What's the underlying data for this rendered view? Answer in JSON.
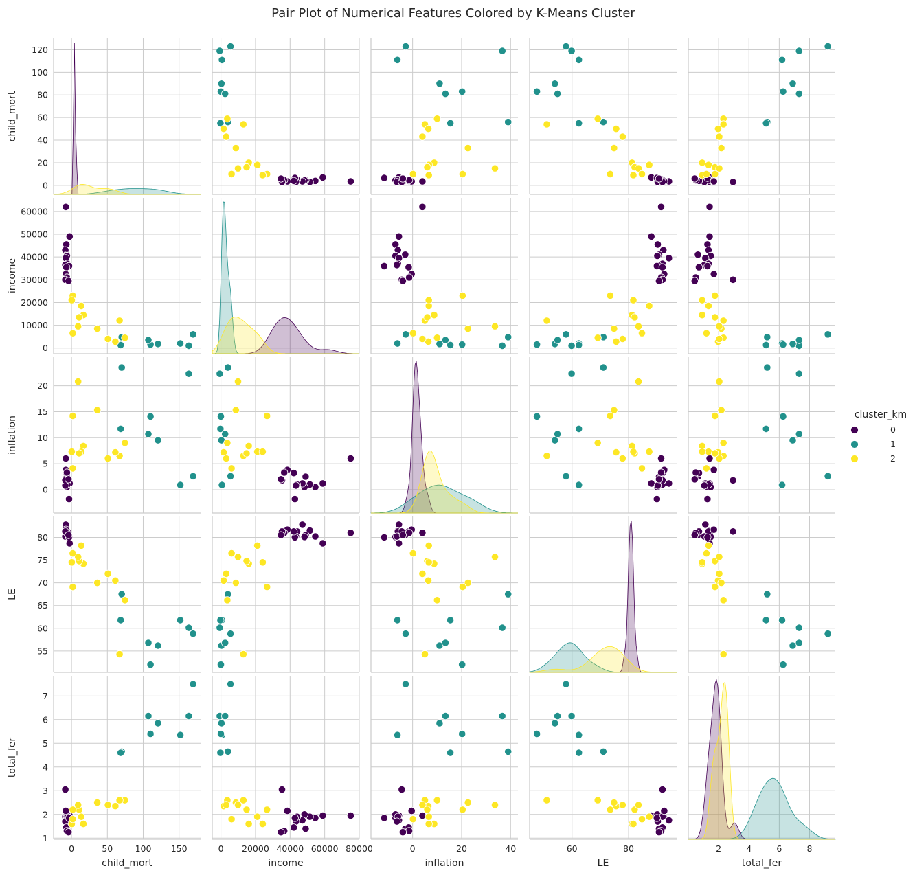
{
  "chart_data": {
    "type": "scatter",
    "title": "Pair Plot of Numerical Features Colored by K-Means Cluster",
    "variables": [
      "child_mort",
      "income",
      "inflation",
      "LE",
      "total_fer"
    ],
    "ranges": {
      "child_mort": [
        -8,
        130
      ],
      "income": [
        -2500,
        66000
      ],
      "inflation": [
        -4.5,
        25.5
      ],
      "LE": [
        50.3,
        84.6
      ],
      "total_fer": [
        0.95,
        7.85
      ]
    },
    "diag_xranges": {
      "child_mort": [
        -25,
        180
      ],
      "income": [
        -5000,
        80000
      ],
      "inflation": [
        -17,
        43
      ],
      "LE": [
        45,
        97
      ],
      "total_fer": [
        0,
        9.7
      ]
    },
    "ticks": {
      "child_mort": [
        0,
        20,
        40,
        60,
        80,
        100,
        120
      ],
      "income": [
        0,
        10000,
        20000,
        30000,
        40000,
        50000,
        60000
      ],
      "inflation": [
        0,
        5,
        10,
        15,
        20
      ],
      "LE": [
        55,
        60,
        65,
        70,
        75,
        80
      ],
      "total_fer": [
        1,
        2,
        3,
        4,
        5,
        6,
        7
      ]
    },
    "bottom_ticks": {
      "child_mort": [
        0,
        50,
        100,
        150
      ],
      "income": [
        0,
        20000,
        40000,
        60000,
        80000
      ],
      "inflation": [
        0,
        20,
        40
      ],
      "LE": [
        60,
        80
      ],
      "total_fer": [
        2,
        4,
        6,
        8
      ]
    },
    "grid": true,
    "legend": {
      "title": "cluster_km",
      "position": "right",
      "entries": [
        {
          "label": "0",
          "color": "#440154"
        },
        {
          "label": "1",
          "color": "#21918c"
        },
        {
          "label": "2",
          "color": "#fde725"
        }
      ]
    },
    "series": [
      {
        "cluster": "0",
        "color": "#440154",
        "points": [
          {
            "child_mort": 3.5,
            "income": 62000,
            "inflation": 6.0,
            "LE": 81.0,
            "total_fer": 1.95
          },
          {
            "child_mort": 7.0,
            "income": 49000,
            "inflation": 1.2,
            "LE": 78.7,
            "total_fer": 1.95
          },
          {
            "child_mort": 4.0,
            "income": 45500,
            "inflation": 0.5,
            "LE": 80.2,
            "total_fer": 1.85
          },
          {
            "child_mort": 3.0,
            "income": 43000,
            "inflation": 1.0,
            "LE": 81.5,
            "total_fer": 1.9
          },
          {
            "child_mort": 4.5,
            "income": 41000,
            "inflation": 2.5,
            "LE": 80.5,
            "total_fer": 1.4
          },
          {
            "child_mort": 4.5,
            "income": 40500,
            "inflation": 0.5,
            "LE": 80.1,
            "total_fer": 2.0
          },
          {
            "child_mort": 3.5,
            "income": 39500,
            "inflation": 1.2,
            "LE": 82.8,
            "total_fer": 1.75
          },
          {
            "child_mort": 5.0,
            "income": 37000,
            "inflation": 1.0,
            "LE": 81.3,
            "total_fer": 1.9
          },
          {
            "child_mort": 3.0,
            "income": 36500,
            "inflation": 0.8,
            "LE": 80.2,
            "total_fer": 1.7
          },
          {
            "child_mort": 6.5,
            "income": 36000,
            "inflation": -1.8,
            "LE": 80.0,
            "total_fer": 1.85
          },
          {
            "child_mort": 4.0,
            "income": 35500,
            "inflation": 3.2,
            "LE": 81.3,
            "total_fer": 1.45
          },
          {
            "child_mort": 3.5,
            "income": 32500,
            "inflation": 3.8,
            "LE": 81.7,
            "total_fer": 2.15
          },
          {
            "child_mort": 4.5,
            "income": 31000,
            "inflation": 3.3,
            "LE": 81.0,
            "total_fer": 1.3
          },
          {
            "child_mort": 3.0,
            "income": 30000,
            "inflation": 1.8,
            "LE": 81.3,
            "total_fer": 3.05
          },
          {
            "child_mort": 6.0,
            "income": 29500,
            "inflation": 2.0,
            "LE": 80.5,
            "total_fer": 1.25
          }
        ]
      },
      {
        "cluster": "1",
        "color": "#21918c",
        "points": [
          {
            "child_mort": 123,
            "income": 6000,
            "inflation": 2.6,
            "LE": 58.8,
            "total_fer": 7.5
          },
          {
            "child_mort": 119,
            "income": 1000,
            "inflation": 22.3,
            "LE": 60.1,
            "total_fer": 6.15
          },
          {
            "child_mort": 111,
            "income": 2000,
            "inflation": 0.9,
            "LE": 61.8,
            "total_fer": 5.35
          },
          {
            "child_mort": 90,
            "income": 1800,
            "inflation": 9.5,
            "LE": 56.2,
            "total_fer": 5.85
          },
          {
            "child_mort": 83,
            "income": 1500,
            "inflation": 14.1,
            "LE": 52.0,
            "total_fer": 5.4
          },
          {
            "child_mort": 81,
            "income": 3500,
            "inflation": 10.7,
            "LE": 56.8,
            "total_fer": 6.15
          },
          {
            "child_mort": 56,
            "income": 4800,
            "inflation": 23.5,
            "LE": 67.5,
            "total_fer": 4.65
          },
          {
            "child_mort": 55,
            "income": 1300,
            "inflation": 11.7,
            "LE": 61.8,
            "total_fer": 4.6
          }
        ]
      },
      {
        "cluster": "2",
        "color": "#fde725",
        "points": [
          {
            "child_mort": 59,
            "income": 4500,
            "inflation": 9.0,
            "LE": 66.2,
            "total_fer": 2.6
          },
          {
            "child_mort": 54,
            "income": 12000,
            "inflation": 6.5,
            "LE": 54.3,
            "total_fer": 2.6
          },
          {
            "child_mort": 50,
            "income": 2800,
            "inflation": 7.2,
            "LE": 70.5,
            "total_fer": 2.35
          },
          {
            "child_mort": 43,
            "income": 4000,
            "inflation": 6.0,
            "LE": 72.0,
            "total_fer": 2.4
          },
          {
            "child_mort": 33,
            "income": 8500,
            "inflation": 15.3,
            "LE": 70.0,
            "total_fer": 2.5
          },
          {
            "child_mort": 20,
            "income": 14500,
            "inflation": 8.4,
            "LE": 74.2,
            "total_fer": 1.6
          },
          {
            "child_mort": 18,
            "income": 18500,
            "inflation": 7.3,
            "LE": 78.2,
            "total_fer": 1.9
          },
          {
            "child_mort": 16,
            "income": 13500,
            "inflation": 7.0,
            "LE": 74.8,
            "total_fer": 2.2
          },
          {
            "child_mort": 15,
            "income": 9500,
            "inflation": 20.8,
            "LE": 75.7,
            "total_fer": 2.4
          },
          {
            "child_mort": 10,
            "income": 23000,
            "inflation": 14.2,
            "LE": 69.1,
            "total_fer": 2.2
          },
          {
            "child_mort": 9,
            "income": 21000,
            "inflation": 7.3,
            "LE": 74.5,
            "total_fer": 1.6
          },
          {
            "child_mort": 10,
            "income": 6500,
            "inflation": 4.1,
            "LE": 76.5,
            "total_fer": 1.8
          }
        ]
      }
    ]
  }
}
